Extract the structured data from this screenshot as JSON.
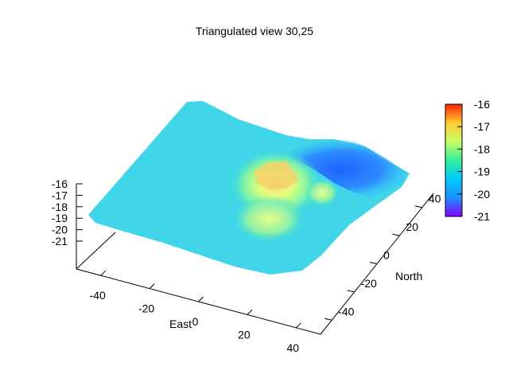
{
  "chart_data": {
    "type": "surface",
    "title": "Triangulated view 30,25",
    "xlabel": "East",
    "ylabel": "North",
    "zlabel": "",
    "x_ticks": [
      -40,
      -20,
      0,
      20,
      40
    ],
    "y_ticks": [
      -40,
      -20,
      0,
      20,
      40
    ],
    "z_ticks": [
      -16,
      -17,
      -18,
      -19,
      -20,
      -21
    ],
    "colorbar_ticks": [
      -16,
      -17,
      -18,
      -19,
      -20,
      -21
    ],
    "xlim": [
      -50,
      50
    ],
    "ylim": [
      -50,
      50
    ],
    "zlim": [
      -21,
      -16
    ],
    "colormap": [
      "#7f00ff",
      "#1e90ff",
      "#00c8ff",
      "#33ee99",
      "#c8ff66",
      "#ffcc33",
      "#ff2200"
    ],
    "grid": false,
    "legend": "colorbar-right",
    "surface_summary": {
      "baseline_z": -19.9,
      "peak_z": -17.8,
      "low_z": -20.6
    }
  }
}
